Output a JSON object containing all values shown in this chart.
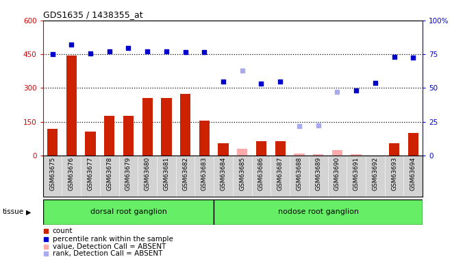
{
  "title": "GDS1635 / 1438355_at",
  "samples": [
    "GSM63675",
    "GSM63676",
    "GSM63677",
    "GSM63678",
    "GSM63679",
    "GSM63680",
    "GSM63681",
    "GSM63682",
    "GSM63683",
    "GSM63684",
    "GSM63685",
    "GSM63686",
    "GSM63687",
    "GSM63688",
    "GSM63689",
    "GSM63690",
    "GSM63691",
    "GSM63692",
    "GSM63693",
    "GSM63694"
  ],
  "groups": [
    {
      "label": "dorsal root ganglion",
      "start": 0,
      "end": 9
    },
    {
      "label": "nodose root ganglion",
      "start": 9,
      "end": 20
    }
  ],
  "bar_values": [
    120,
    445,
    105,
    175,
    175,
    255,
    255,
    275,
    155,
    55,
    null,
    65,
    65,
    null,
    null,
    null,
    null,
    null,
    55,
    100
  ],
  "bar_absent_values": [
    null,
    null,
    null,
    null,
    null,
    null,
    null,
    null,
    null,
    null,
    30,
    null,
    null,
    8,
    5,
    25,
    5,
    null,
    null,
    null
  ],
  "rank_pct": [
    75.0,
    82.0,
    75.5,
    77.0,
    79.5,
    77.0,
    77.0,
    76.5,
    76.5,
    55.0,
    null,
    53.5,
    55.0,
    null,
    null,
    null,
    48.0,
    54.0,
    73.0,
    72.5
  ],
  "rank_absent_pct": [
    null,
    null,
    null,
    null,
    null,
    null,
    null,
    null,
    null,
    null,
    63.0,
    null,
    null,
    22.0,
    22.5,
    47.0,
    null,
    null,
    null,
    null
  ],
  "left_ylim": [
    0,
    600
  ],
  "right_ylim": [
    0,
    100
  ],
  "left_yticks": [
    0,
    150,
    300,
    450,
    600
  ],
  "right_yticks": [
    0,
    25,
    50,
    75,
    100
  ],
  "left_tick_color": "#cc0000",
  "right_tick_color": "#0000cc",
  "bar_color": "#cc2200",
  "bar_absent_color": "#ffaaaa",
  "rank_color": "#0000cc",
  "rank_absent_color": "#aaaaee",
  "tissue_label": "tissue",
  "group_color": "#66ee66",
  "bg_color": "#d3d3d3",
  "legend_items": [
    {
      "color": "#cc2200",
      "label": "count"
    },
    {
      "color": "#0000cc",
      "label": "percentile rank within the sample"
    },
    {
      "color": "#ffaaaa",
      "label": "value, Detection Call = ABSENT"
    },
    {
      "color": "#aaaaee",
      "label": "rank, Detection Call = ABSENT"
    }
  ]
}
